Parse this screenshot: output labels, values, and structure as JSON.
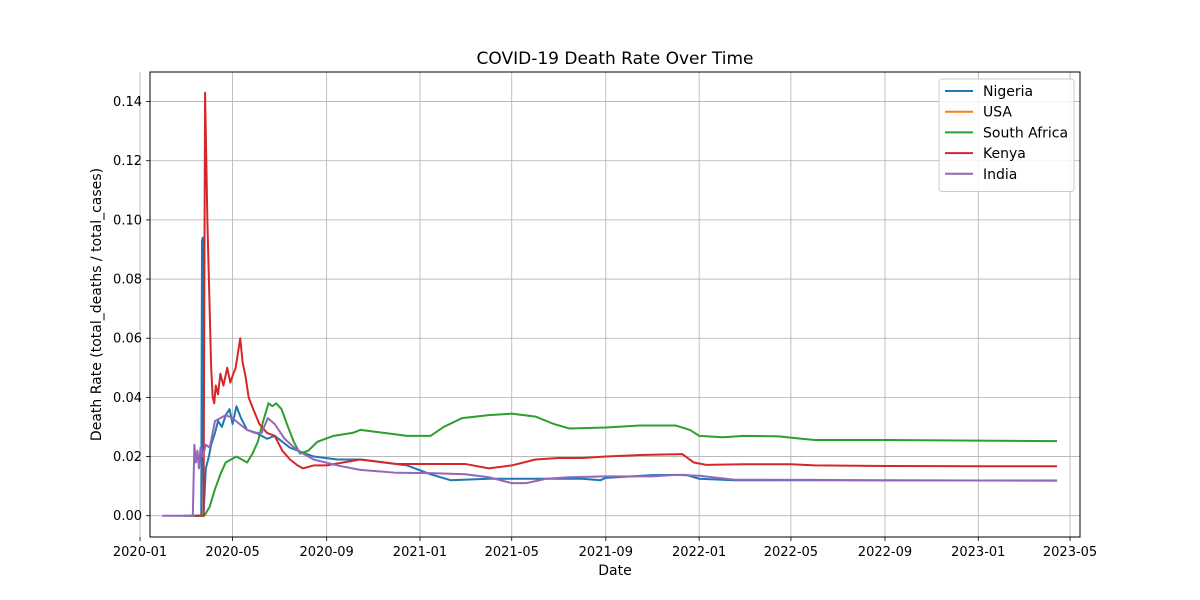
{
  "chart_data": {
    "type": "line",
    "title": "COVID-19 Death Rate Over Time",
    "xlabel": "Date",
    "ylabel": "Death Rate (total_deaths / total_cases)",
    "xlim": [
      "2020-01-14",
      "2023-05-14"
    ],
    "ylim": [
      -0.0072,
      0.15
    ],
    "x_ticks": [
      "2020-01",
      "2020-05",
      "2020-09",
      "2021-01",
      "2021-05",
      "2021-09",
      "2022-01",
      "2022-05",
      "2022-09",
      "2023-01",
      "2023-05"
    ],
    "y_ticks": [
      "0.00",
      "0.02",
      "0.04",
      "0.06",
      "0.08",
      "0.10",
      "0.12",
      "0.14"
    ],
    "grid": true,
    "legend_position": "top-right",
    "series": [
      {
        "name": "Nigeria",
        "color": "#1f77b4",
        "points": [
          [
            "2020-02-27",
            0.0
          ],
          [
            "2020-03-21",
            0.0
          ],
          [
            "2020-03-22",
            0.093
          ],
          [
            "2020-03-23",
            0.094
          ],
          [
            "2020-03-24",
            0.0
          ],
          [
            "2020-03-27",
            0.016
          ],
          [
            "2020-03-31",
            0.02
          ],
          [
            "2020-04-03",
            0.024
          ],
          [
            "2020-04-08",
            0.028
          ],
          [
            "2020-04-12",
            0.032
          ],
          [
            "2020-04-17",
            0.03
          ],
          [
            "2020-04-22",
            0.034
          ],
          [
            "2020-04-27",
            0.036
          ],
          [
            "2020-05-01",
            0.031
          ],
          [
            "2020-05-06",
            0.037
          ],
          [
            "2020-05-12",
            0.033
          ],
          [
            "2020-05-20",
            0.029
          ],
          [
            "2020-06-01",
            0.028
          ],
          [
            "2020-06-15",
            0.026
          ],
          [
            "2020-06-25",
            0.027
          ],
          [
            "2020-07-15",
            0.023
          ],
          [
            "2020-08-15",
            0.02
          ],
          [
            "2020-09-15",
            0.019
          ],
          [
            "2020-10-15",
            0.019
          ],
          [
            "2020-11-15",
            0.018
          ],
          [
            "2020-12-15",
            0.017
          ],
          [
            "2021-01-15",
            0.014
          ],
          [
            "2021-02-10",
            0.012
          ],
          [
            "2021-04-01",
            0.0125
          ],
          [
            "2021-06-01",
            0.0125
          ],
          [
            "2021-08-01",
            0.0125
          ],
          [
            "2021-08-25",
            0.012
          ],
          [
            "2021-09-01",
            0.0128
          ],
          [
            "2021-11-01",
            0.0137
          ],
          [
            "2021-12-15",
            0.0138
          ],
          [
            "2022-01-01",
            0.0125
          ],
          [
            "2022-02-15",
            0.012
          ],
          [
            "2022-06-01",
            0.012
          ],
          [
            "2022-09-01",
            0.012
          ],
          [
            "2023-01-01",
            0.0119
          ],
          [
            "2023-04-14",
            0.0119
          ]
        ]
      },
      {
        "name": "USA",
        "color": "#ff7f0e",
        "points": []
      },
      {
        "name": "South Africa",
        "color": "#2ca02c",
        "points": [
          [
            "2020-03-05",
            0.0
          ],
          [
            "2020-03-25",
            0.0
          ],
          [
            "2020-04-01",
            0.003
          ],
          [
            "2020-04-08",
            0.009
          ],
          [
            "2020-04-15",
            0.014
          ],
          [
            "2020-04-22",
            0.018
          ],
          [
            "2020-04-29",
            0.019
          ],
          [
            "2020-05-06",
            0.02
          ],
          [
            "2020-05-13",
            0.019
          ],
          [
            "2020-05-20",
            0.018
          ],
          [
            "2020-05-27",
            0.021
          ],
          [
            "2020-06-03",
            0.025
          ],
          [
            "2020-06-10",
            0.032
          ],
          [
            "2020-06-17",
            0.038
          ],
          [
            "2020-06-22",
            0.037
          ],
          [
            "2020-06-27",
            0.038
          ],
          [
            "2020-07-04",
            0.036
          ],
          [
            "2020-07-11",
            0.031
          ],
          [
            "2020-07-20",
            0.025
          ],
          [
            "2020-07-28",
            0.021
          ],
          [
            "2020-08-08",
            0.022
          ],
          [
            "2020-08-20",
            0.025
          ],
          [
            "2020-09-10",
            0.027
          ],
          [
            "2020-10-05",
            0.028
          ],
          [
            "2020-10-15",
            0.029
          ],
          [
            "2020-11-15",
            0.028
          ],
          [
            "2020-12-15",
            0.027
          ],
          [
            "2021-01-15",
            0.027
          ],
          [
            "2021-02-01",
            0.03
          ],
          [
            "2021-02-25",
            0.033
          ],
          [
            "2021-04-01",
            0.034
          ],
          [
            "2021-05-01",
            0.0345
          ],
          [
            "2021-06-01",
            0.0335
          ],
          [
            "2021-06-25",
            0.031
          ],
          [
            "2021-07-15",
            0.0295
          ],
          [
            "2021-09-01",
            0.0298
          ],
          [
            "2021-10-15",
            0.0305
          ],
          [
            "2021-12-01",
            0.0305
          ],
          [
            "2021-12-20",
            0.029
          ],
          [
            "2022-01-01",
            0.027
          ],
          [
            "2022-02-01",
            0.0265
          ],
          [
            "2022-03-01",
            0.027
          ],
          [
            "2022-04-15",
            0.0268
          ],
          [
            "2022-05-15",
            0.026
          ],
          [
            "2022-06-01",
            0.0256
          ],
          [
            "2022-09-01",
            0.0256
          ],
          [
            "2023-01-01",
            0.0254
          ],
          [
            "2023-04-14",
            0.0252
          ]
        ]
      },
      {
        "name": "Kenya",
        "color": "#d62728",
        "points": [
          [
            "2020-03-13",
            0.0
          ],
          [
            "2020-03-24",
            0.0
          ],
          [
            "2020-03-26",
            0.143
          ],
          [
            "2020-03-29",
            0.1
          ],
          [
            "2020-04-01",
            0.07
          ],
          [
            "2020-04-03",
            0.05
          ],
          [
            "2020-04-05",
            0.04
          ],
          [
            "2020-04-07",
            0.038
          ],
          [
            "2020-04-09",
            0.044
          ],
          [
            "2020-04-12",
            0.041
          ],
          [
            "2020-04-15",
            0.048
          ],
          [
            "2020-04-19",
            0.044
          ],
          [
            "2020-04-24",
            0.05
          ],
          [
            "2020-04-28",
            0.045
          ],
          [
            "2020-05-02",
            0.048
          ],
          [
            "2020-05-05",
            0.05
          ],
          [
            "2020-05-08",
            0.055
          ],
          [
            "2020-05-11",
            0.06
          ],
          [
            "2020-05-14",
            0.052
          ],
          [
            "2020-05-18",
            0.047
          ],
          [
            "2020-05-22",
            0.04
          ],
          [
            "2020-05-28",
            0.036
          ],
          [
            "2020-06-05",
            0.031
          ],
          [
            "2020-06-15",
            0.028
          ],
          [
            "2020-06-25",
            0.027
          ],
          [
            "2020-07-05",
            0.022
          ],
          [
            "2020-07-15",
            0.019
          ],
          [
            "2020-07-25",
            0.017
          ],
          [
            "2020-08-01",
            0.016
          ],
          [
            "2020-08-15",
            0.017
          ],
          [
            "2020-09-01",
            0.017
          ],
          [
            "2020-10-15",
            0.019
          ],
          [
            "2020-12-01",
            0.0175
          ],
          [
            "2021-02-01",
            0.0175
          ],
          [
            "2021-03-01",
            0.0175
          ],
          [
            "2021-04-01",
            0.016
          ],
          [
            "2021-05-01",
            0.017
          ],
          [
            "2021-06-01",
            0.019
          ],
          [
            "2021-07-01",
            0.0195
          ],
          [
            "2021-08-01",
            0.0195
          ],
          [
            "2021-09-01",
            0.02
          ],
          [
            "2021-10-15",
            0.0205
          ],
          [
            "2021-12-10",
            0.0208
          ],
          [
            "2021-12-25",
            0.018
          ],
          [
            "2022-01-10",
            0.0172
          ],
          [
            "2022-03-01",
            0.0174
          ],
          [
            "2022-05-01",
            0.0174
          ],
          [
            "2022-06-01",
            0.017
          ],
          [
            "2022-09-01",
            0.0168
          ],
          [
            "2023-01-01",
            0.0167
          ],
          [
            "2023-04-14",
            0.0167
          ]
        ]
      },
      {
        "name": "India",
        "color": "#9467bd",
        "points": [
          [
            "2020-01-30",
            0.0
          ],
          [
            "2020-03-10",
            0.0
          ],
          [
            "2020-03-12",
            0.024
          ],
          [
            "2020-03-14",
            0.018
          ],
          [
            "2020-03-16",
            0.022
          ],
          [
            "2020-03-18",
            0.016
          ],
          [
            "2020-03-20",
            0.023
          ],
          [
            "2020-03-23",
            0.02
          ],
          [
            "2020-03-27",
            0.024
          ],
          [
            "2020-04-01",
            0.023
          ],
          [
            "2020-04-08",
            0.032
          ],
          [
            "2020-04-15",
            0.033
          ],
          [
            "2020-04-22",
            0.034
          ],
          [
            "2020-05-01",
            0.033
          ],
          [
            "2020-05-10",
            0.031
          ],
          [
            "2020-05-20",
            0.029
          ],
          [
            "2020-05-30",
            0.028
          ],
          [
            "2020-06-08",
            0.028
          ],
          [
            "2020-06-16",
            0.033
          ],
          [
            "2020-06-25",
            0.031
          ],
          [
            "2020-07-08",
            0.026
          ],
          [
            "2020-07-25",
            0.022
          ],
          [
            "2020-08-15",
            0.019
          ],
          [
            "2020-09-15",
            0.017
          ],
          [
            "2020-10-15",
            0.0155
          ],
          [
            "2020-12-01",
            0.0145
          ],
          [
            "2021-01-15",
            0.0144
          ],
          [
            "2021-03-01",
            0.014
          ],
          [
            "2021-04-01",
            0.013
          ],
          [
            "2021-05-01",
            0.011
          ],
          [
            "2021-05-20",
            0.011
          ],
          [
            "2021-06-15",
            0.0125
          ],
          [
            "2021-07-15",
            0.013
          ],
          [
            "2021-09-01",
            0.0133
          ],
          [
            "2021-11-01",
            0.0133
          ],
          [
            "2021-12-01",
            0.0138
          ],
          [
            "2022-01-01",
            0.0135
          ],
          [
            "2022-02-15",
            0.0122
          ],
          [
            "2022-06-01",
            0.0121
          ],
          [
            "2022-09-01",
            0.0119
          ],
          [
            "2023-01-01",
            0.0119
          ],
          [
            "2023-04-14",
            0.0118
          ]
        ]
      }
    ]
  }
}
